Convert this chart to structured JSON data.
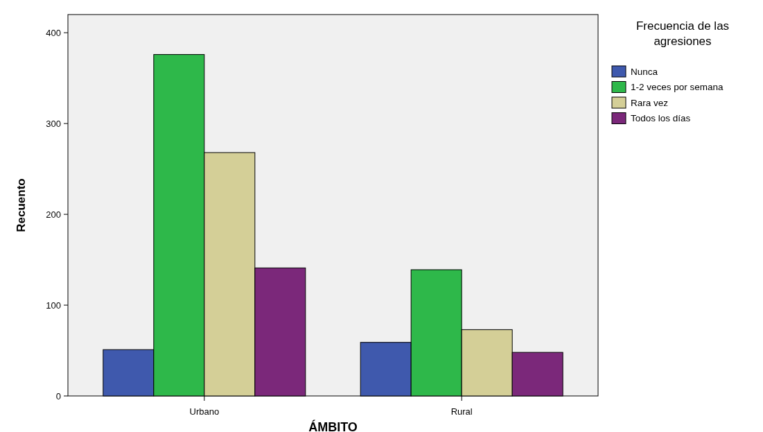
{
  "chart_data": {
    "type": "bar",
    "xlabel": "ÁMBITO",
    "ylabel": "Recuento",
    "legend_title": "Frecuencia de las agresiones",
    "categories": [
      "Urbano",
      "Rural"
    ],
    "series": [
      {
        "name": "Nunca",
        "color": "#3f59ad",
        "values": [
          51,
          59
        ]
      },
      {
        "name": "1-2 veces por semana",
        "color": "#2eb84a",
        "values": [
          376,
          139
        ]
      },
      {
        "name": "Rara vez",
        "color": "#d4cf97",
        "values": [
          268,
          73
        ]
      },
      {
        "name": "Todos los días",
        "color": "#7b287a",
        "values": [
          141,
          48
        ]
      }
    ],
    "ylim": [
      0,
      420
    ],
    "yticks": [
      0,
      100,
      200,
      300,
      400
    ],
    "grid": false,
    "legend": "right"
  }
}
